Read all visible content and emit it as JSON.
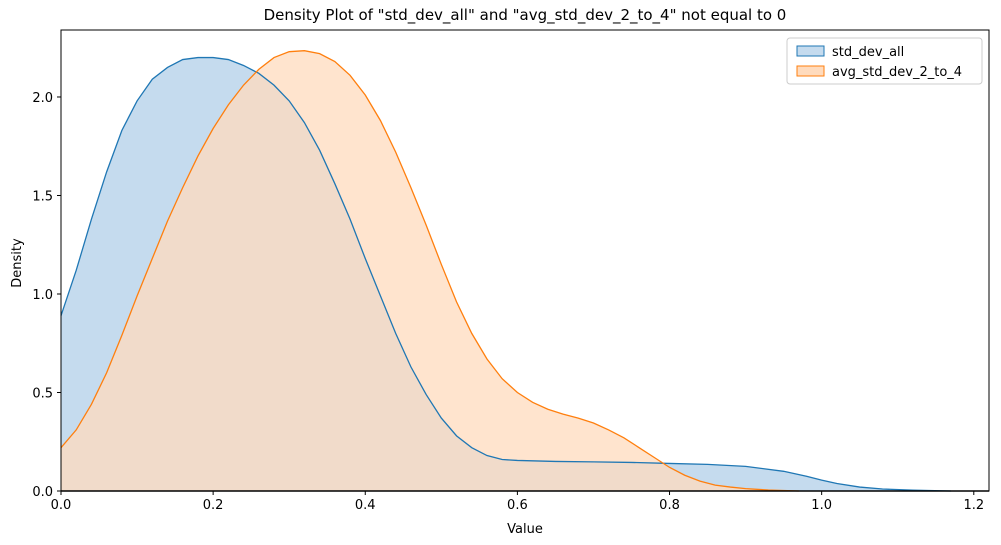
{
  "chart_data": {
    "type": "area",
    "title": "Density Plot of \"std_dev_all\" and \"avg_std_dev_2_to_4\" not equal to 0",
    "xlabel": "Value",
    "ylabel": "Density",
    "xlim": [
      0.0,
      1.22
    ],
    "ylim": [
      0.0,
      2.34
    ],
    "xticks": [
      "0.0",
      "0.2",
      "0.4",
      "0.6",
      "0.8",
      "1.0",
      "1.2"
    ],
    "yticks": [
      "0.0",
      "0.5",
      "1.0",
      "1.5",
      "2.0"
    ],
    "grid": false,
    "legend_position": "top-right",
    "series": [
      {
        "name": "std_dev_all",
        "color": "#1f77b4",
        "fill": "#c5dbee",
        "points": [
          [
            0.0,
            0.89
          ],
          [
            0.02,
            1.12
          ],
          [
            0.04,
            1.38
          ],
          [
            0.06,
            1.62
          ],
          [
            0.08,
            1.83
          ],
          [
            0.1,
            1.98
          ],
          [
            0.12,
            2.09
          ],
          [
            0.14,
            2.15
          ],
          [
            0.16,
            2.19
          ],
          [
            0.18,
            2.2
          ],
          [
            0.2,
            2.2
          ],
          [
            0.22,
            2.19
          ],
          [
            0.24,
            2.16
          ],
          [
            0.26,
            2.12
          ],
          [
            0.28,
            2.06
          ],
          [
            0.3,
            1.98
          ],
          [
            0.32,
            1.87
          ],
          [
            0.34,
            1.73
          ],
          [
            0.36,
            1.56
          ],
          [
            0.38,
            1.38
          ],
          [
            0.4,
            1.18
          ],
          [
            0.42,
            0.99
          ],
          [
            0.44,
            0.8
          ],
          [
            0.46,
            0.63
          ],
          [
            0.48,
            0.49
          ],
          [
            0.5,
            0.37
          ],
          [
            0.52,
            0.28
          ],
          [
            0.54,
            0.22
          ],
          [
            0.56,
            0.18
          ],
          [
            0.58,
            0.16
          ],
          [
            0.6,
            0.155
          ],
          [
            0.65,
            0.15
          ],
          [
            0.7,
            0.148
          ],
          [
            0.75,
            0.145
          ],
          [
            0.8,
            0.14
          ],
          [
            0.85,
            0.135
          ],
          [
            0.9,
            0.125
          ],
          [
            0.95,
            0.1
          ],
          [
            0.98,
            0.075
          ],
          [
            1.0,
            0.055
          ],
          [
            1.02,
            0.038
          ],
          [
            1.05,
            0.02
          ],
          [
            1.08,
            0.01
          ],
          [
            1.12,
            0.004
          ],
          [
            1.17,
            0.0
          ]
        ]
      },
      {
        "name": "avg_std_dev_2_to_4",
        "color": "#ff7f0e",
        "fill": "#ffdbbd",
        "points": [
          [
            0.0,
            0.22
          ],
          [
            0.02,
            0.31
          ],
          [
            0.04,
            0.44
          ],
          [
            0.06,
            0.6
          ],
          [
            0.08,
            0.79
          ],
          [
            0.1,
            0.99
          ],
          [
            0.12,
            1.18
          ],
          [
            0.14,
            1.37
          ],
          [
            0.16,
            1.54
          ],
          [
            0.18,
            1.7
          ],
          [
            0.2,
            1.84
          ],
          [
            0.22,
            1.96
          ],
          [
            0.24,
            2.06
          ],
          [
            0.26,
            2.14
          ],
          [
            0.28,
            2.2
          ],
          [
            0.3,
            2.23
          ],
          [
            0.32,
            2.235
          ],
          [
            0.34,
            2.22
          ],
          [
            0.36,
            2.18
          ],
          [
            0.38,
            2.11
          ],
          [
            0.4,
            2.01
          ],
          [
            0.42,
            1.88
          ],
          [
            0.44,
            1.72
          ],
          [
            0.46,
            1.54
          ],
          [
            0.48,
            1.35
          ],
          [
            0.5,
            1.15
          ],
          [
            0.52,
            0.96
          ],
          [
            0.54,
            0.8
          ],
          [
            0.56,
            0.67
          ],
          [
            0.58,
            0.57
          ],
          [
            0.6,
            0.5
          ],
          [
            0.62,
            0.45
          ],
          [
            0.64,
            0.415
          ],
          [
            0.66,
            0.39
          ],
          [
            0.68,
            0.37
          ],
          [
            0.7,
            0.345
          ],
          [
            0.72,
            0.31
          ],
          [
            0.74,
            0.27
          ],
          [
            0.76,
            0.22
          ],
          [
            0.78,
            0.17
          ],
          [
            0.8,
            0.12
          ],
          [
            0.82,
            0.08
          ],
          [
            0.84,
            0.05
          ],
          [
            0.86,
            0.03
          ],
          [
            0.88,
            0.02
          ],
          [
            0.9,
            0.012
          ],
          [
            0.93,
            0.005
          ],
          [
            0.97,
            0.0
          ]
        ]
      }
    ]
  }
}
